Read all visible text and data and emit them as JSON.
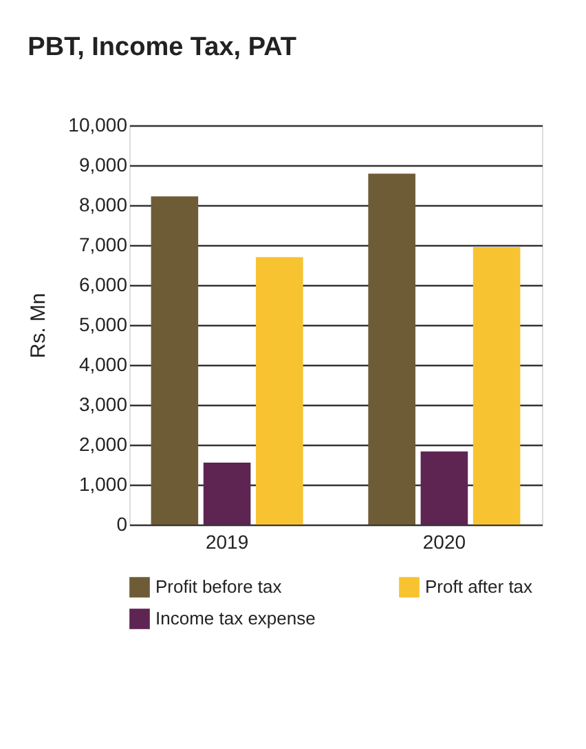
{
  "chart_data": {
    "type": "bar",
    "title": "PBT, Income Tax, PAT",
    "ylabel": "Rs. Mn",
    "categories": [
      "2019",
      "2020"
    ],
    "series": [
      {
        "name": "Profit before tax",
        "color": "#6e5c37",
        "values": [
          8220,
          8790
        ]
      },
      {
        "name": "Income tax expense",
        "color": "#5e2552",
        "values": [
          1550,
          1830
        ]
      },
      {
        "name": "Proft after tax",
        "color": "#f8c330",
        "values": [
          6700,
          6950
        ]
      }
    ],
    "ylim": [
      0,
      10000
    ],
    "yticks": [
      0,
      {
        "value": 1000,
        "label": "1,000"
      },
      {
        "value": 2000,
        "label": "2,000"
      },
      {
        "value": 3000,
        "label": "3,000"
      },
      {
        "value": 4000,
        "label": "4,000"
      },
      {
        "value": 5000,
        "label": "5,000"
      },
      {
        "value": 6000,
        "label": "6,000"
      },
      {
        "value": 7000,
        "label": "7,000"
      },
      {
        "value": 8000,
        "label": "8,000"
      },
      {
        "value": 9000,
        "label": "9,000"
      },
      {
        "value": 10000,
        "label": "10,000"
      }
    ],
    "grid": "y",
    "legend": "bottom"
  }
}
